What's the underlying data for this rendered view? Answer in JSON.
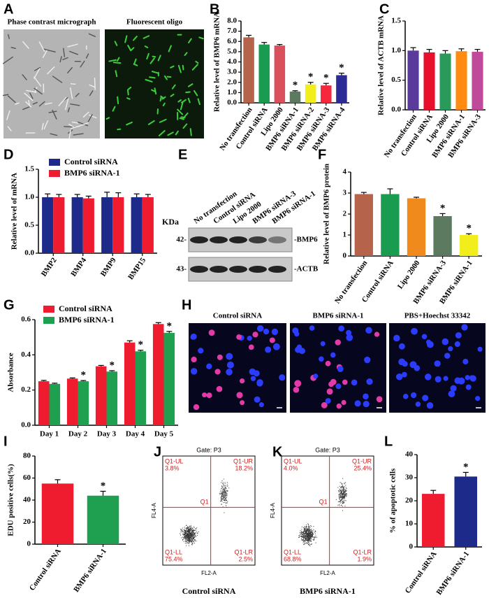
{
  "chart_data": [
    {
      "panel": "B",
      "type": "bar",
      "ylabel": "Relative level of BMP6 mRNA",
      "categories": [
        "No transfection",
        "Control siRNA",
        "Lipo 2000",
        "BMP6 siRNA-1",
        "BMP6 siRNA-2",
        "BMP6 siRNA-3",
        "BMP6 siRNA-4"
      ],
      "values": [
        6.4,
        5.7,
        5.6,
        1.1,
        1.8,
        1.7,
        2.7
      ],
      "errors": [
        0.2,
        0.2,
        0.1,
        0.08,
        0.2,
        0.2,
        0.2
      ],
      "colors": [
        "#b5634b",
        "#1a9c50",
        "#d94f5c",
        "#5b7a5f",
        "#f2ee1c",
        "#f5283c",
        "#2b2b98"
      ],
      "significance": [
        null,
        null,
        null,
        "*",
        "*",
        "*",
        "*"
      ],
      "ylim": [
        0,
        8
      ],
      "yticks": [
        {
          "value": 0,
          "label": "0.0"
        },
        {
          "value": 1,
          "label": "1.0"
        },
        {
          "value": 2,
          "label": "2.0"
        },
        {
          "value": 3,
          "label": "3.0"
        },
        {
          "value": 4,
          "label": "4.0"
        },
        {
          "value": 5,
          "label": "5.0"
        },
        {
          "value": 6,
          "label": "6.0"
        },
        {
          "value": 7,
          "label": "7.0"
        },
        {
          "value": 8,
          "label": "8.0"
        }
      ]
    },
    {
      "panel": "C",
      "type": "bar",
      "ylabel": "Relative level of ACTB mRNA",
      "categories": [
        "No transfection",
        "Control siRNA",
        "Lipo 2000",
        "BMP6 siRNA-1",
        "BMP6 siRNA-3"
      ],
      "values": [
        1.0,
        0.97,
        0.95,
        0.99,
        0.98
      ],
      "errors": [
        0.05,
        0.05,
        0.05,
        0.04,
        0.04
      ],
      "colors": [
        "#5a3a9a",
        "#e8102a",
        "#2a9a5a",
        "#ff8c10",
        "#c04a9a"
      ],
      "ylim": [
        0,
        1.5
      ],
      "yticks": [
        {
          "value": 0,
          "label": "0.0"
        },
        0.5,
        {
          "value": 1,
          "label": "1.0"
        },
        1.5
      ]
    },
    {
      "panel": "D",
      "type": "bar",
      "ylabel": "Relative level of mRNA",
      "legend": "top-left",
      "categories": [
        "BMP2",
        "BMP4",
        "BMP9",
        "BMP15"
      ],
      "series": [
        {
          "name": "Control siRNA",
          "color": "#1e2a8a",
          "values": [
            1.0,
            1.0,
            1.0,
            1.0
          ],
          "errors": [
            0.06,
            0.05,
            0.09,
            0.06
          ]
        },
        {
          "name": "BMP6 siRNA-1",
          "color": "#ee1c2e",
          "values": [
            1.0,
            0.98,
            1.0,
            1.0
          ],
          "errors": [
            0.05,
            0.04,
            0.08,
            0.05
          ]
        }
      ],
      "ylim": [
        0,
        1.5
      ],
      "yticks": [
        {
          "value": 0,
          "label": "0.0"
        },
        0.5,
        {
          "value": 1,
          "label": "1.0"
        },
        1.5
      ]
    },
    {
      "panel": "F",
      "type": "bar",
      "ylabel": "Relative level of BMP6 protein",
      "categories": [
        "No transfection",
        "Control siRNA",
        "Lipo 2000",
        "BMP6 siRNA-3",
        "BMP6 siRNA-1"
      ],
      "values": [
        2.95,
        2.95,
        2.75,
        1.9,
        1.0
      ],
      "errors": [
        0.08,
        0.25,
        0.05,
        0.12,
        0.06
      ],
      "colors": [
        "#b5634b",
        "#1a9c50",
        "#f08a1c",
        "#5b7a5f",
        "#f2ee1c"
      ],
      "significance": [
        null,
        null,
        null,
        "*",
        "*"
      ],
      "ylim": [
        0,
        4
      ],
      "yticks": [
        0,
        1,
        2,
        3,
        4
      ]
    },
    {
      "panel": "G",
      "type": "bar",
      "ylabel": "Absorbance",
      "legend": "top-left",
      "categories": [
        "Day 1",
        "Day 2",
        "Day 3",
        "Day 4",
        "Day 5"
      ],
      "series": [
        {
          "name": "Control siRNA",
          "color": "#ee1c2e",
          "values": [
            0.25,
            0.265,
            0.335,
            0.47,
            0.575
          ],
          "errors": [
            0.005,
            0.004,
            0.005,
            0.01,
            0.008
          ]
        },
        {
          "name": "BMP6 siRNA-1",
          "color": "#1fa050",
          "values": [
            0.235,
            0.25,
            0.305,
            0.42,
            0.525
          ],
          "errors": [
            0.004,
            0.004,
            0.005,
            0.006,
            0.008
          ],
          "significance": [
            null,
            "*",
            "*",
            "*",
            "*"
          ]
        }
      ],
      "ylim": [
        0,
        0.6
      ],
      "yticks": [
        {
          "value": 0,
          "label": "0.0"
        },
        0.2,
        0.4,
        0.6
      ]
    },
    {
      "panel": "I",
      "type": "bar",
      "ylabel": "EDU positive cells(%)",
      "categories": [
        "Control siRNA",
        "BMP6 siRNA-1"
      ],
      "values": [
        55,
        44
      ],
      "errors": [
        3.5,
        4
      ],
      "colors": [
        "#ee1c2e",
        "#1fa050"
      ],
      "significance": [
        null,
        "*"
      ],
      "ylim": [
        0,
        80
      ],
      "yticks": [
        0,
        20,
        40,
        60,
        80
      ]
    },
    {
      "panel": "L",
      "type": "bar",
      "ylabel": "% of apoptotic cells",
      "categories": [
        "Control siRNA",
        "BMP6 siRNA-1"
      ],
      "values": [
        23,
        30.5
      ],
      "errors": [
        1.5,
        1.8
      ],
      "colors": [
        "#ee1c2e",
        "#1e2a8a"
      ],
      "significance": [
        null,
        "*"
      ],
      "ylim": [
        0,
        40
      ],
      "yticks": [
        0,
        10,
        20,
        30,
        40
      ]
    }
  ],
  "micrographs": {
    "panel": "A",
    "captions": [
      "Phase contrast micrograph",
      "Fluorescent oligo"
    ]
  },
  "western_blot": {
    "panel": "E",
    "unit": "KDa",
    "lanes": [
      "No transfection",
      "Control siRNA",
      "Lipo 2000",
      "BMP6 siRNA-3",
      "BMP6 siRNA-1"
    ],
    "bands": [
      {
        "size": "42-",
        "name": "-BMP6"
      },
      {
        "size": "43-",
        "name": "-ACTB"
      }
    ]
  },
  "staining": {
    "panel": "H",
    "captions": [
      "Control siRNA",
      "BMP6 siRNA-1",
      "PBS+Hoechst 33342"
    ]
  },
  "flow_cytometry": [
    {
      "panel": "J",
      "gate": "Gate: P3",
      "center": "Q1",
      "y_axis": "FL4-A",
      "x_axis": "FL2-A",
      "caption": "Control siRNA",
      "quadrants": [
        {
          "name": "Q1-UL",
          "value": "3.8%"
        },
        {
          "name": "Q1-UR",
          "value": "18.2%"
        },
        {
          "name": "Q1-LL",
          "value": "75.4%"
        },
        {
          "name": "Q1-LR",
          "value": "2.5%"
        }
      ]
    },
    {
      "panel": "K",
      "gate": "Gate: P3",
      "center": "Q1",
      "y_axis": "FL4-A",
      "x_axis": "FL2-A",
      "caption": "BMP6 siRNA-1",
      "quadrants": [
        {
          "name": "Q1-UL",
          "value": "4.0%"
        },
        {
          "name": "Q1-UR",
          "value": "25.4%"
        },
        {
          "name": "Q1-LL",
          "value": "68.8%"
        },
        {
          "name": "Q1-LR",
          "value": "1.9%"
        }
      ]
    }
  ]
}
